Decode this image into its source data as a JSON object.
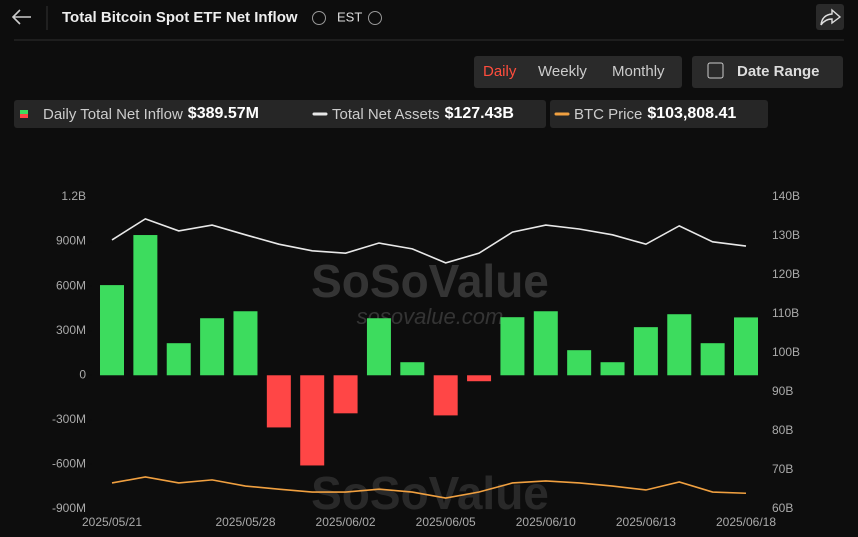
{
  "header": {
    "title": "Total Bitcoin Spot ETF Net Inflow",
    "timezone": "EST",
    "tabs": [
      "Daily",
      "Weekly",
      "Monthly"
    ],
    "date_range": "Date Range"
  },
  "watermark": [
    "SoSoValue",
    "sosovalue.com"
  ],
  "chart_data": {
    "type": "bar",
    "categories": [
      "2025/05/21",
      null,
      null,
      null,
      "2025/05/28",
      null,
      null,
      "2025/06/02",
      null,
      null,
      "2025/06/05",
      null,
      null,
      "2025/06/10",
      null,
      null,
      "2025/06/13",
      null,
      null,
      "2025/06/18"
    ],
    "series": [
      {
        "name": "Daily Total Net Inflow",
        "type": "bar",
        "colors": {
          "positive": "#3ddc5e",
          "negative": "#ff4646"
        },
        "latest": "$389.57M",
        "values": [
          607,
          944,
          216,
          384,
          431,
          -351,
          -607,
          -256,
          384,
          88,
          -270,
          -40,
          391,
          431,
          169,
          88,
          324,
          411,
          216,
          389.57
        ]
      },
      {
        "name": "Total Net Assets",
        "type": "line",
        "axis": "y2",
        "color": "#e8e8e8",
        "latest": "$127.43B",
        "values": [
          129.0,
          134.4,
          131.3,
          132.8,
          130.3,
          127.9,
          126.2,
          125.6,
          128.2,
          126.7,
          123.1,
          125.6,
          131.0,
          132.8,
          131.8,
          130.3,
          127.9,
          132.6,
          128.5,
          127.43
        ]
      },
      {
        "name": "BTC Price",
        "type": "line",
        "color": "#f0a040",
        "latest": "$103,808.41",
        "values": [
          108800,
          111700,
          108800,
          110300,
          107300,
          105800,
          104400,
          104400,
          105800,
          104400,
          101500,
          104400,
          108800,
          109800,
          108800,
          107300,
          105400,
          109300,
          104400,
          103808.41
        ]
      }
    ],
    "ylim": [
      -900,
      1200
    ],
    "yticks": [
      {
        "value": -900,
        "label": "-900M"
      },
      {
        "value": -600,
        "label": "-600M"
      },
      {
        "value": -300,
        "label": "-300M"
      },
      0,
      {
        "value": 300,
        "label": "300M"
      },
      {
        "value": 600,
        "label": "600M"
      },
      {
        "value": 900,
        "label": "900M"
      },
      {
        "value": 1200,
        "label": "1.2B"
      }
    ],
    "y2lim": [
      60,
      140
    ],
    "y2ticks": [
      {
        "value": 60,
        "label": "60B"
      },
      {
        "value": 70,
        "label": "70B"
      },
      {
        "value": 80,
        "label": "80B"
      },
      {
        "value": 90,
        "label": "90B"
      },
      {
        "value": 100,
        "label": "100B"
      },
      {
        "value": 110,
        "label": "110B"
      },
      {
        "value": 120,
        "label": "120B"
      },
      {
        "value": 130,
        "label": "130B"
      },
      {
        "value": 140,
        "label": "140B"
      }
    ]
  }
}
